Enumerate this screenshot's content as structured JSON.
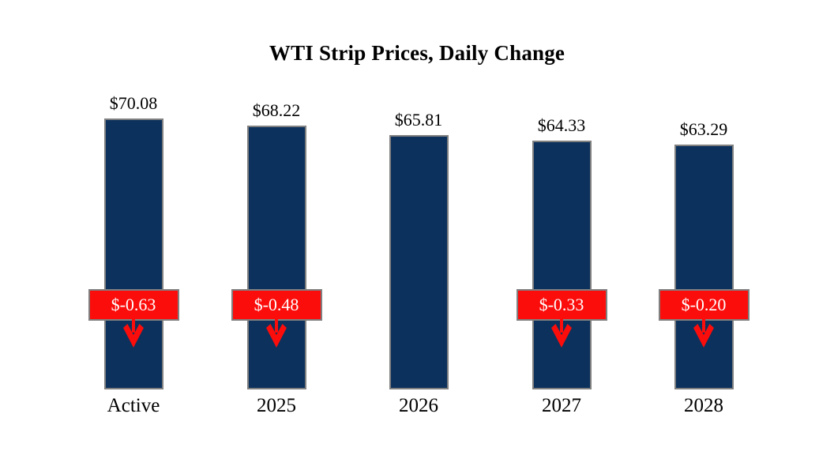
{
  "title": "WTI Strip Prices, Daily Change",
  "colors": {
    "background": "#ffffff",
    "text": "#000000",
    "bar_fill": "#0c315c",
    "bar_border": "#808080",
    "badge_fill": "#fb0d0b",
    "badge_border": "#808080",
    "badge_text": "#ffffff",
    "arrow": "#fb0d0b"
  },
  "chart_data": {
    "type": "bar",
    "title": "WTI Strip Prices, Daily Change",
    "orientation": "vertical",
    "categories": [
      "Active",
      "2025",
      "2026",
      "2027",
      "2028"
    ],
    "values": [
      70.08,
      68.22,
      65.81,
      64.33,
      63.29
    ],
    "value_labels": [
      "$70.08",
      "$68.22",
      "$65.81",
      "$64.33",
      "$63.29"
    ],
    "daily_changes": [
      -0.63,
      -0.48,
      null,
      -0.33,
      -0.2
    ],
    "change_labels": [
      "$-0.63",
      "$-0.48",
      null,
      "$-0.33",
      "$-0.20"
    ],
    "ylim": [
      0,
      70.08
    ],
    "grid": false,
    "legend": null,
    "xlabel": "",
    "ylabel": ""
  }
}
